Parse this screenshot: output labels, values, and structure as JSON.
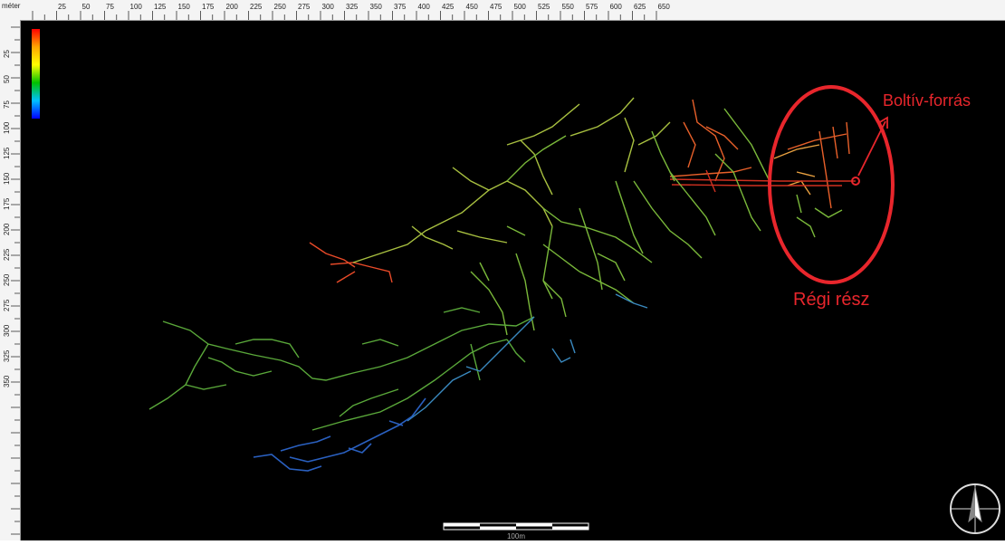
{
  "ruler": {
    "unit": "méter",
    "x_ticks": [
      "25",
      "50",
      "75",
      "100",
      "125",
      "150",
      "175",
      "200",
      "225",
      "250",
      "275",
      "300",
      "325",
      "350",
      "375",
      "400",
      "425",
      "450",
      "475",
      "500",
      "525",
      "550",
      "575",
      "600",
      "625",
      "650"
    ],
    "y_ticks": [
      "25",
      "50",
      "75",
      "100",
      "125",
      "150",
      "175",
      "200",
      "225",
      "250",
      "275",
      "300",
      "325",
      "350"
    ]
  },
  "annotations": {
    "spring_label": "Boltív-forrás",
    "old_section_label": "Régi rész"
  },
  "scale_bar": {
    "label": "100m"
  },
  "colors": {
    "annotation": "#e8262c",
    "background": "#000000",
    "legend_gradient": [
      "#ff0000",
      "#ffa500",
      "#ffff00",
      "#00c000",
      "#00c0ff",
      "#0000ff"
    ]
  },
  "icons": {
    "north_arrow": "north-arrow-icon"
  }
}
